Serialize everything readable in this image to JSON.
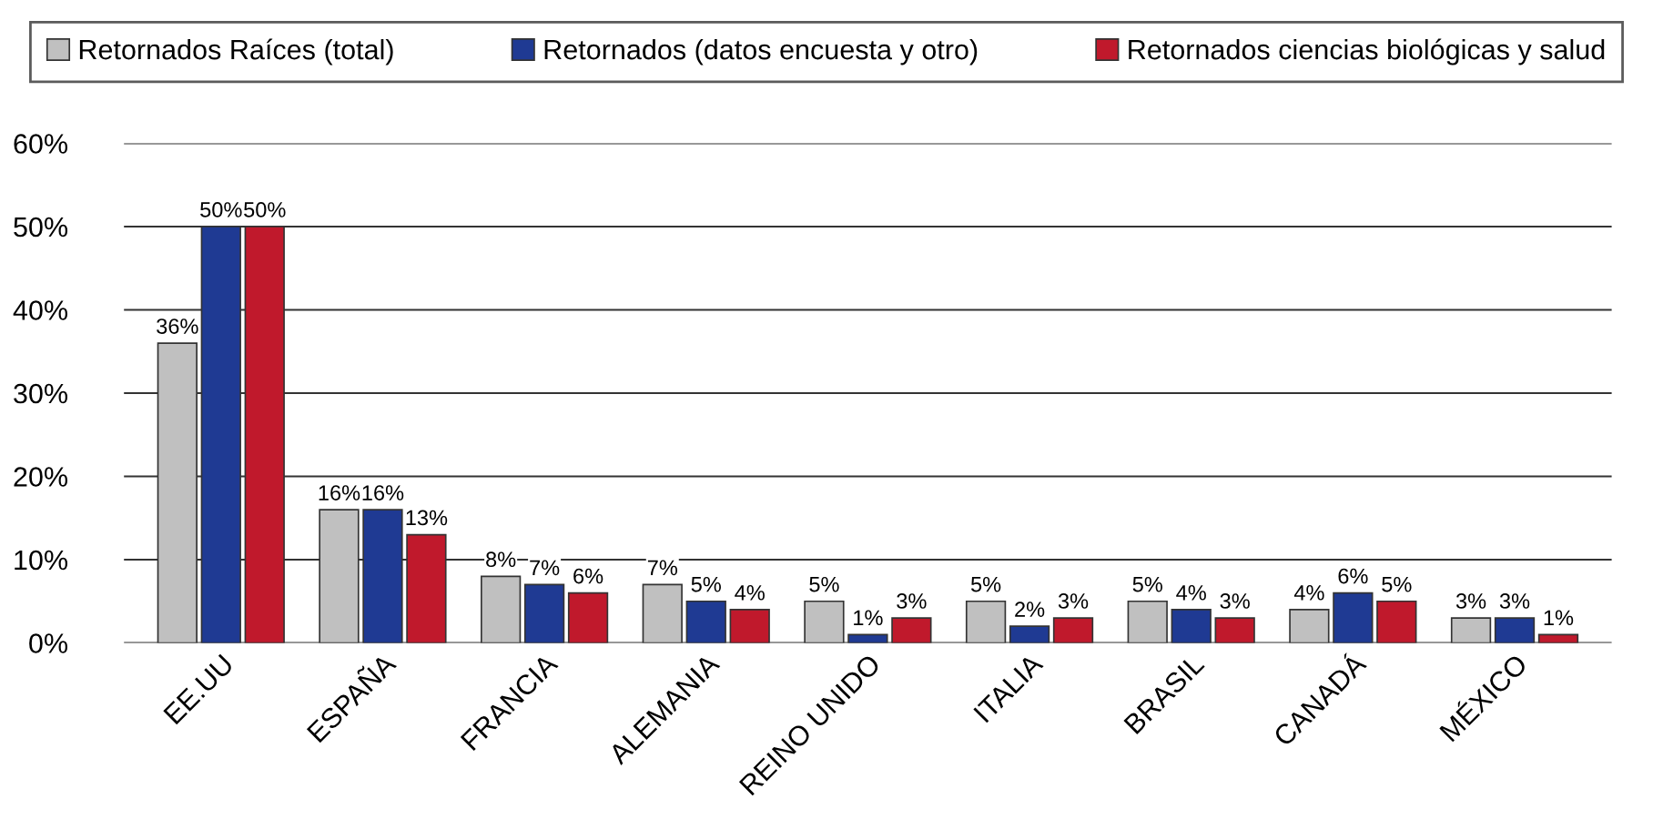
{
  "chart_data": {
    "type": "bar",
    "categories": [
      "EE.UU",
      "ESPAÑA",
      "FRANCIA",
      "ALEMANIA",
      "REINO UNIDO",
      "ITALIA",
      "BRASIL",
      "CANADÁ",
      "MÉXICO"
    ],
    "series": [
      {
        "name": "Retornados Raíces (total)",
        "color": "#c0c0c0",
        "values": [
          36,
          16,
          8,
          7,
          5,
          5,
          5,
          4,
          3
        ],
        "value_labels": [
          "36%",
          "16%",
          "8%",
          "7%",
          "5%",
          "5%",
          "5%",
          "4%",
          "3%"
        ]
      },
      {
        "name": "Retornados (datos encuesta y otro)",
        "color": "#1f3a93",
        "values": [
          50,
          16,
          7,
          5,
          1,
          2,
          4,
          6,
          3
        ],
        "value_labels": [
          "50%",
          "16%",
          "7%",
          "5%",
          "1%",
          "2%",
          "4%",
          "6%",
          "3%"
        ]
      },
      {
        "name": "Retornados ciencias biológicas y salud",
        "color": "#c0192c",
        "values": [
          50,
          13,
          6,
          4,
          3,
          3,
          3,
          5,
          1
        ],
        "value_labels": [
          "50%",
          "13%",
          "6%",
          "4%",
          "3%",
          "3%",
          "3%",
          "5%",
          "1%"
        ]
      }
    ],
    "ylim": [
      0,
      60
    ],
    "yticks": [
      {
        "value": 0,
        "label": "0%"
      },
      {
        "value": 10,
        "label": "10%"
      },
      {
        "value": 20,
        "label": "20%"
      },
      {
        "value": 30,
        "label": "30%"
      },
      {
        "value": 40,
        "label": "40%"
      },
      {
        "value": 50,
        "label": "50%"
      },
      {
        "value": 60,
        "label": "60%"
      }
    ],
    "grid": "y",
    "legend": "top"
  }
}
